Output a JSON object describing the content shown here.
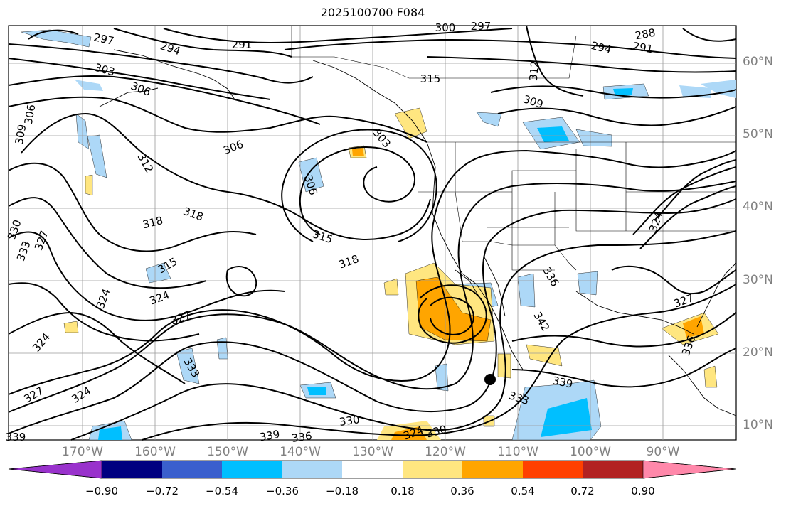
{
  "title": "2025100700 F084",
  "lat_labels": [
    "60°N",
    "50°N",
    "40°N",
    "30°N",
    "20°N",
    "10°N"
  ],
  "lon_labels": [
    "170°W",
    "160°W",
    "150°W",
    "140°W",
    "130°W",
    "120°W",
    "110°W",
    "100°W",
    "90°W"
  ],
  "colorbar": {
    "ticks": [
      "−0.90",
      "−0.72",
      "−0.54",
      "−0.36",
      "−0.18",
      "0.18",
      "0.36",
      "0.54",
      "0.72",
      "0.90"
    ],
    "colors": [
      "#9932cc",
      "#000080",
      "#3a5fcd",
      "#00bfff",
      "#add8f7",
      "#ffffff",
      "#ffe680",
      "#ffa500",
      "#ff4000",
      "#b22222",
      "#ff88aa"
    ]
  },
  "contour_labels": [
    "297",
    "294",
    "291",
    "300",
    "297",
    "288",
    "294",
    "291",
    "303",
    "315",
    "312",
    "309",
    "306",
    "303",
    "306",
    "309",
    "306",
    "312",
    "306",
    "318",
    "318",
    "315",
    "330",
    "327",
    "333",
    "318",
    "315",
    "324",
    "324",
    "327",
    "324",
    "336",
    "342",
    "327",
    "324",
    "336",
    "333",
    "339",
    "327",
    "324",
    "333",
    "330",
    "339",
    "336",
    "330",
    "324",
    "339"
  ],
  "marker": {
    "type": "point",
    "color": "#000000"
  }
}
